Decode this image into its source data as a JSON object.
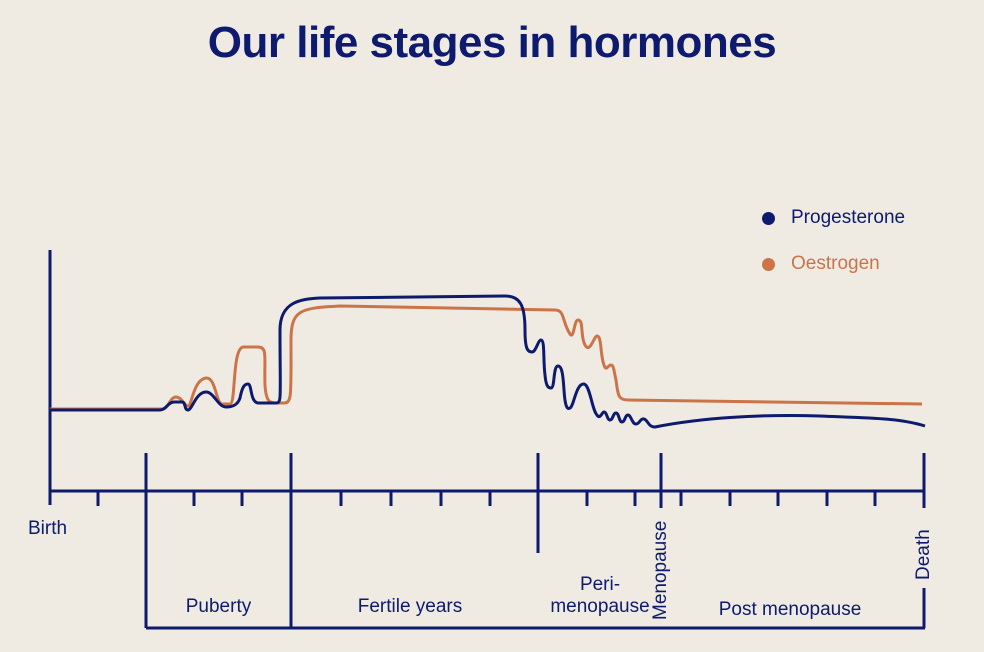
{
  "title": "Our life stages in hormones",
  "legend": [
    {
      "label": "Progesterone",
      "color": "#0d1a6e"
    },
    {
      "label": "Oestrogen",
      "color": "#cc7448"
    }
  ],
  "axis": {
    "start": "Birth",
    "menopause": "Menopause",
    "end": "Death"
  },
  "stages": {
    "puberty": "Puberty",
    "fertile": "Fertile years",
    "peri_1": "Peri-",
    "peri_2": "menopause",
    "post": "Post menopause"
  }
}
